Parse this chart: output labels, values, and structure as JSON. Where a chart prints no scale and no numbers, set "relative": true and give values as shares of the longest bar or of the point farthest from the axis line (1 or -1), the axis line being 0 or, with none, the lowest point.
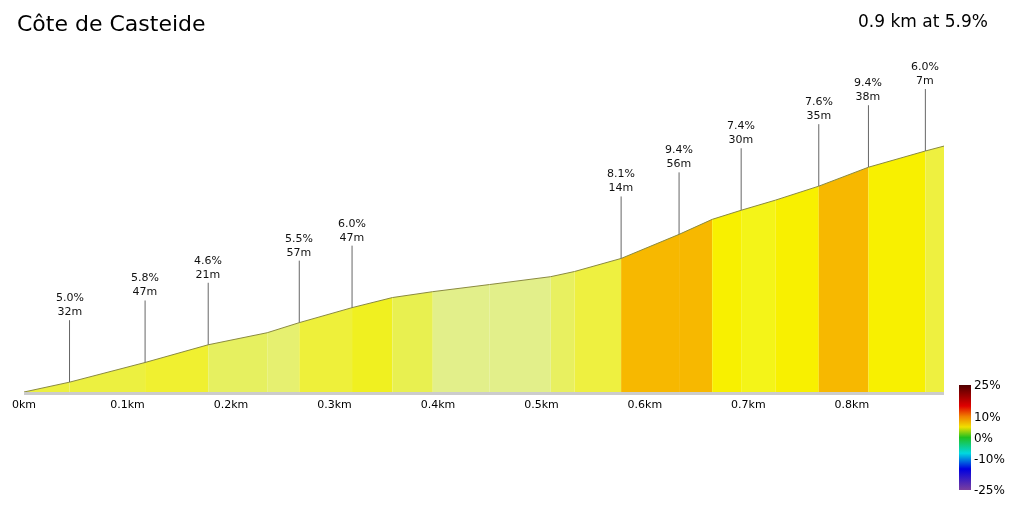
{
  "chart_data": {
    "type": "area",
    "title": "Côte de Casteide",
    "subtitle": "0.9 km at 5.9%",
    "relative": true,
    "xlim": [
      0,
      0.889
    ],
    "xticks": [
      {
        "value": 0,
        "label": "0km"
      },
      {
        "value": 0.1,
        "label": "0.1km"
      },
      {
        "value": 0.2,
        "label": "0.2km"
      },
      {
        "value": 0.3,
        "label": "0.3km"
      },
      {
        "value": 0.4,
        "label": "0.4km"
      },
      {
        "value": 0.5,
        "label": "0.5km"
      },
      {
        "value": 0.6,
        "label": "0.6km"
      },
      {
        "value": 0.7,
        "label": "0.7km"
      },
      {
        "value": 0.8,
        "label": "0.8km"
      }
    ],
    "series": [
      {
        "color": "#ecf040",
        "x": [
          0,
          0.044
        ],
        "values": [
          0,
          0.04
        ]
      },
      {
        "color": "#ecf040",
        "x": [
          0.044,
          0.117
        ],
        "values": [
          0.04,
          0.12
        ]
      },
      {
        "color": "#f0f030",
        "x": [
          0.117,
          0.178
        ],
        "values": [
          0.12,
          0.192
        ]
      },
      {
        "color": "#e6f060",
        "x": [
          0.178,
          0.235
        ],
        "values": [
          0.192,
          0.241
        ]
      },
      {
        "color": "#e6f070",
        "x": [
          0.235,
          0.266
        ],
        "values": [
          0.241,
          0.282
        ]
      },
      {
        "color": "#eef03a",
        "x": [
          0.266,
          0.317
        ],
        "values": [
          0.282,
          0.343
        ]
      },
      {
        "color": "#f0f020",
        "x": [
          0.317,
          0.356
        ],
        "values": [
          0.343,
          0.384
        ]
      },
      {
        "color": "#e8f050",
        "x": [
          0.356,
          0.395
        ],
        "values": [
          0.384,
          0.408
        ]
      },
      {
        "color": "#e2ef8a",
        "x": [
          0.395,
          0.45
        ],
        "values": [
          0.408,
          0.437
        ]
      },
      {
        "color": "#e2ef8a",
        "x": [
          0.45,
          0.509
        ],
        "values": [
          0.437,
          0.469
        ]
      },
      {
        "color": "#e8f060",
        "x": [
          0.509,
          0.532
        ],
        "values": [
          0.469,
          0.49
        ]
      },
      {
        "color": "#eef040",
        "x": [
          0.532,
          0.577
        ],
        "values": [
          0.49,
          0.543
        ]
      },
      {
        "color": "#f7b800",
        "x": [
          0.577,
          0.633
        ],
        "values": [
          0.543,
          0.641
        ]
      },
      {
        "color": "#f7b800",
        "x": [
          0.633,
          0.665
        ],
        "values": [
          0.641,
          0.702
        ]
      },
      {
        "color": "#f8f000",
        "x": [
          0.665,
          0.693
        ],
        "values": [
          0.702,
          0.739
        ]
      },
      {
        "color": "#f4f418",
        "x": [
          0.693,
          0.726
        ],
        "values": [
          0.739,
          0.78
        ]
      },
      {
        "color": "#f8f000",
        "x": [
          0.726,
          0.768
        ],
        "values": [
          0.78,
          0.837
        ]
      },
      {
        "color": "#f7b800",
        "x": [
          0.768,
          0.816
        ],
        "values": [
          0.837,
          0.914
        ]
      },
      {
        "color": "#f8f000",
        "x": [
          0.816,
          0.871
        ],
        "values": [
          0.914,
          0.98
        ]
      },
      {
        "color": "#eef040",
        "x": [
          0.871,
          0.889
        ],
        "values": [
          0.98,
          1.0
        ]
      }
    ],
    "annotations": [
      {
        "text": "5.0%\n32m",
        "x": 0.044,
        "y": 0.04
      },
      {
        "text": "5.8%\n47m",
        "x": 0.117,
        "y": 0.12
      },
      {
        "text": "4.6%\n21m",
        "x": 0.178,
        "y": 0.192
      },
      {
        "text": "5.5%\n57m",
        "x": 0.266,
        "y": 0.282
      },
      {
        "text": "6.0%\n47m",
        "x": 0.317,
        "y": 0.343
      },
      {
        "text": "8.1%\n14m",
        "x": 0.577,
        "y": 0.543
      },
      {
        "text": "9.4%\n56m",
        "x": 0.633,
        "y": 0.641
      },
      {
        "text": "7.4%\n30m",
        "x": 0.693,
        "y": 0.739
      },
      {
        "text": "7.6%\n35m",
        "x": 0.768,
        "y": 0.837
      },
      {
        "text": "9.4%\n38m",
        "x": 0.816,
        "y": 0.914
      },
      {
        "text": "6.0%\n7m",
        "x": 0.871,
        "y": 0.98
      }
    ],
    "clim": [
      -25,
      25
    ],
    "cticks": [
      {
        "value": 25,
        "label": "25%"
      },
      {
        "value": 10,
        "label": "10%"
      },
      {
        "value": 0,
        "label": "0%"
      },
      {
        "value": -10,
        "label": "-10%"
      },
      {
        "value": -25,
        "label": "-25%"
      }
    ]
  }
}
